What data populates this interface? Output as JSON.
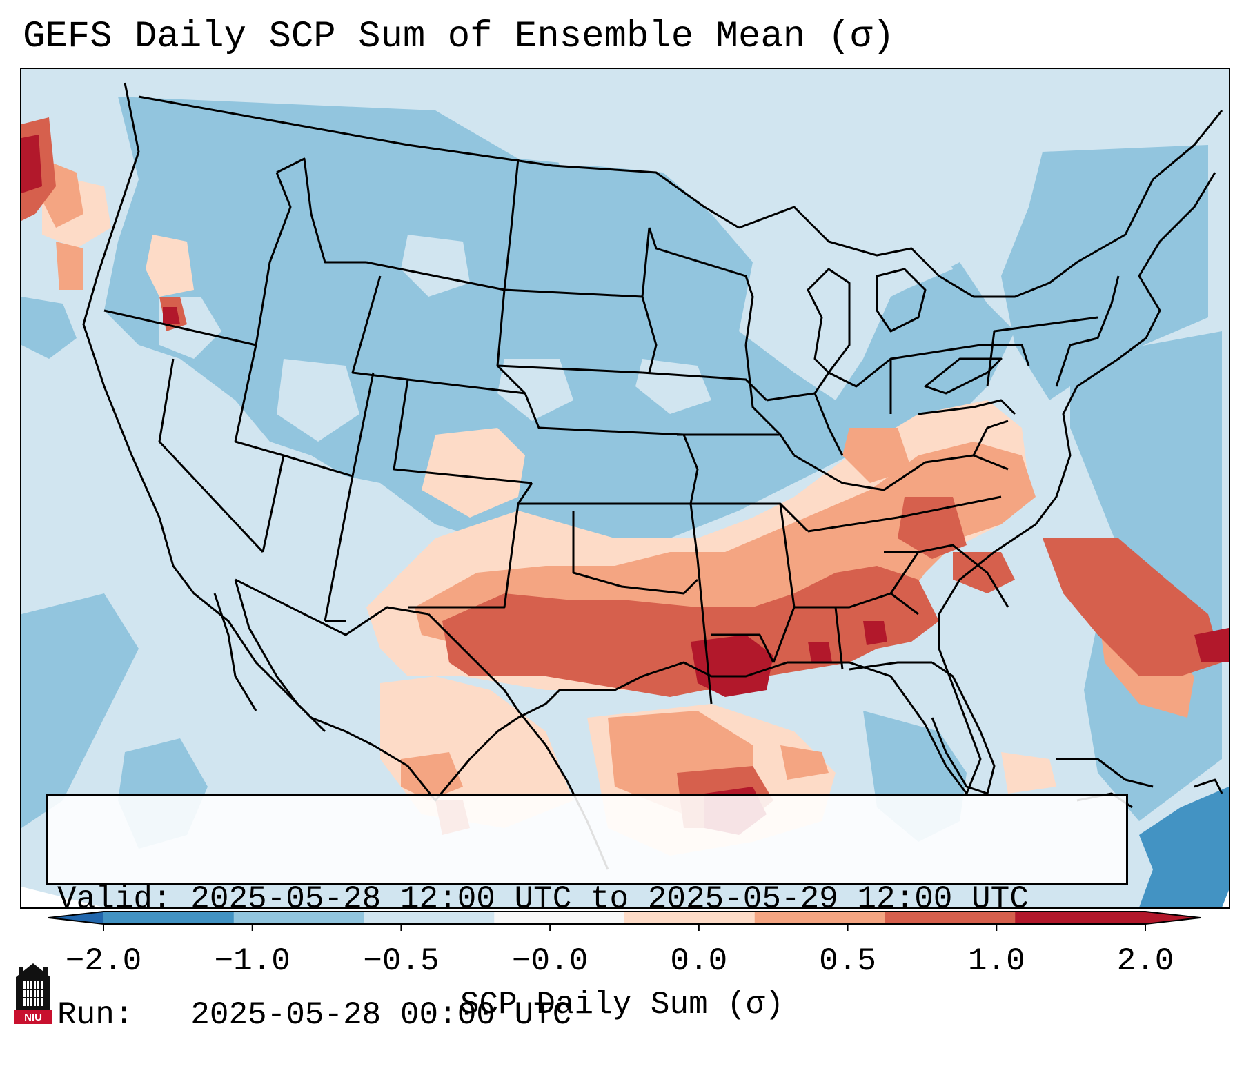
{
  "title": "GEFS Daily SCP Sum of Ensemble Mean (σ)",
  "info": {
    "valid_line": "Valid: 2025-05-28 12:00 UTC to 2025-05-29 12:00 UTC",
    "run_line": "Run:   2025-05-28 00:00 UTC"
  },
  "colorbar": {
    "label": "SCP Daily Sum (σ)",
    "ticks": [
      "−2.0",
      "−1.0",
      "−0.5",
      "−0.0",
      "0.0",
      "0.5",
      "1.0",
      "2.0"
    ],
    "extend": "both",
    "colors": [
      "#4393c3",
      "#92c5de",
      "#d1e5f0",
      "#f7f7f7",
      "#fddbc7",
      "#f4a582",
      "#d6604d",
      "#b2182b"
    ],
    "extend_low_color": "#2166ac",
    "extend_high_color": "#b2182b"
  },
  "colors": {
    "bin_neg2": "#4393c3",
    "bin_neg1": "#92c5de",
    "bin_neg05": "#d1e5f0",
    "bin_pos0": "#fddbc7",
    "bin_pos05": "#f4a582",
    "bin_pos1": "#d6604d",
    "bin_pos2": "#b2182b",
    "state_lines": "#000000"
  },
  "logo": {
    "icon": "niu-building-logo-icon",
    "text": "NIU"
  }
}
